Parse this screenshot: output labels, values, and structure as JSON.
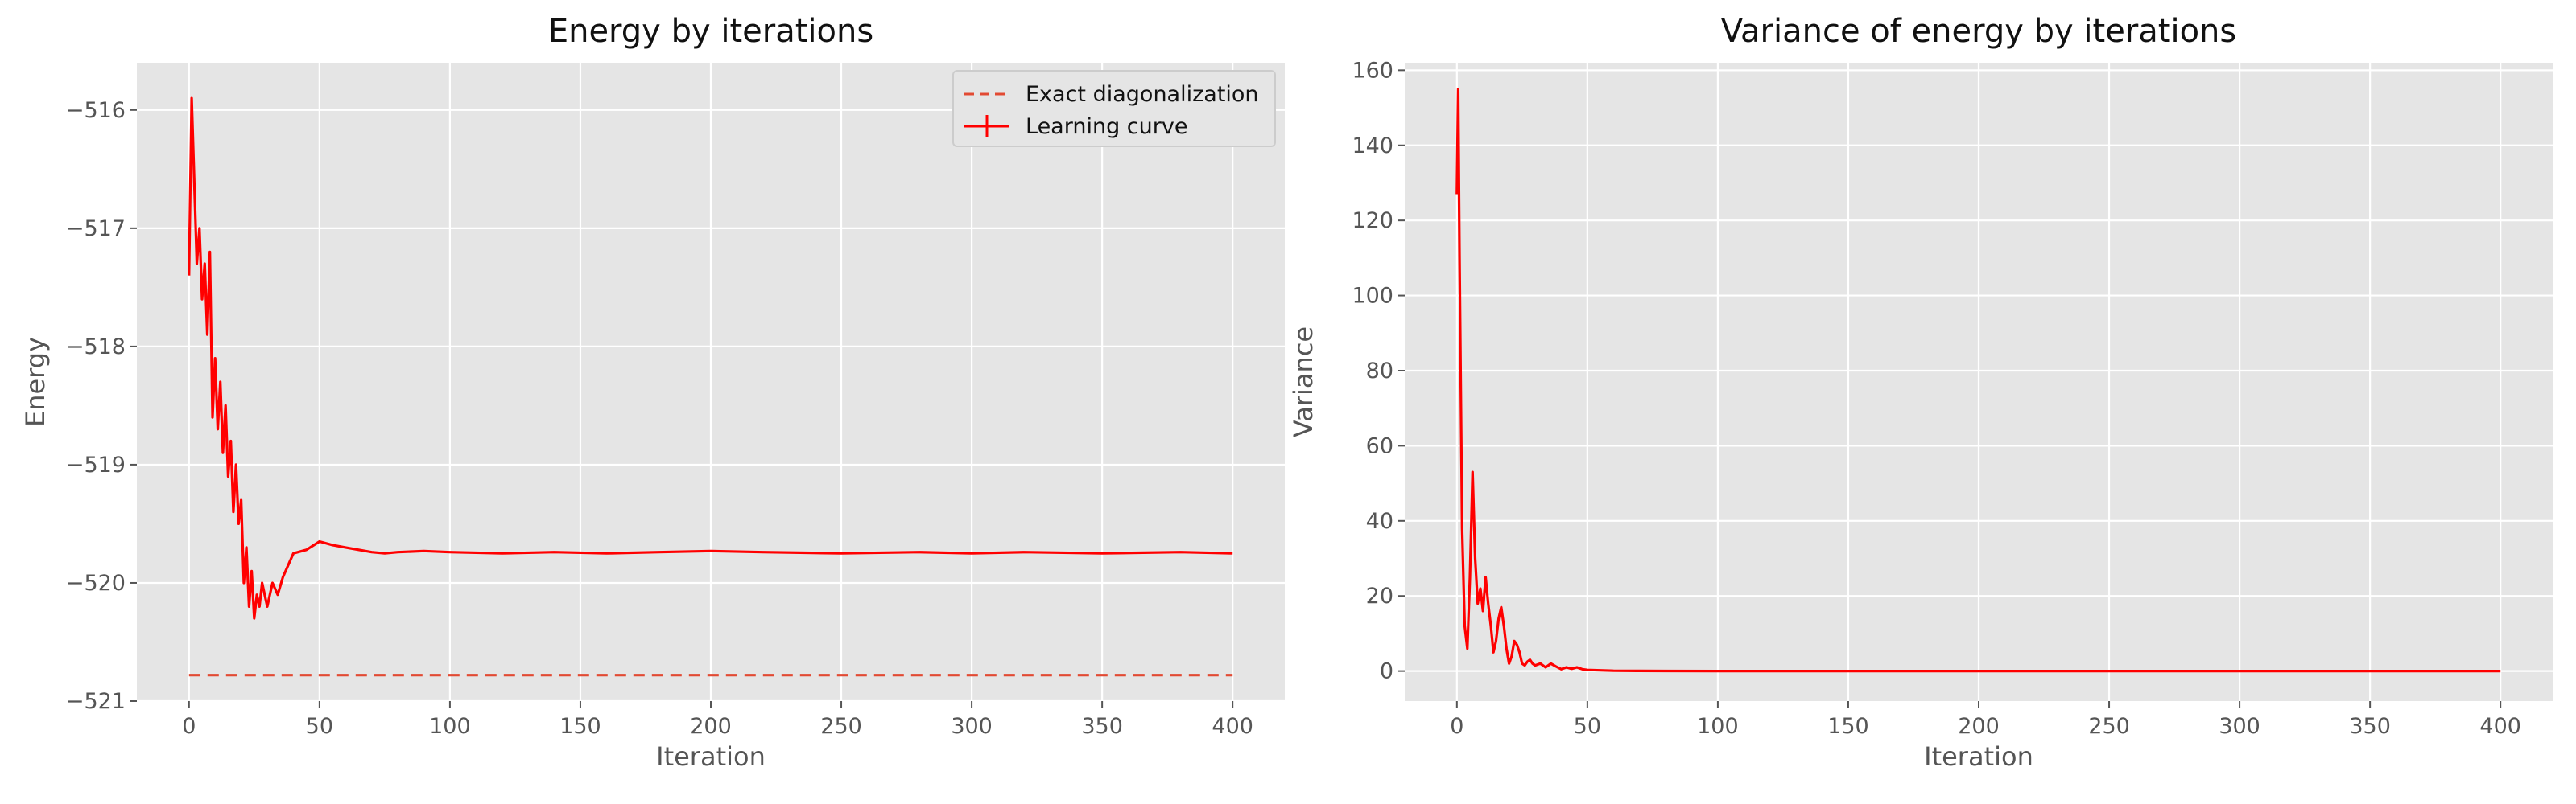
{
  "chart_data": [
    {
      "type": "line",
      "title": "Energy by iterations",
      "xlabel": "Iteration",
      "ylabel": "Energy",
      "xlim": [
        -20,
        420
      ],
      "ylim": [
        -521,
        -515.6
      ],
      "xticks": [
        0,
        50,
        100,
        150,
        200,
        250,
        300,
        350,
        400
      ],
      "xtick_labels": [
        "0",
        "50",
        "100",
        "150",
        "200",
        "250",
        "300",
        "350",
        "400"
      ],
      "yticks": [
        -521,
        -520,
        -519,
        -518,
        -517,
        -516
      ],
      "ytick_labels": [
        "−521",
        "−520",
        "−519",
        "−518",
        "−517",
        "−516"
      ],
      "grid": true,
      "legend_position": "top-right",
      "series": [
        {
          "name": "Exact diagonalization",
          "style": "dashed",
          "color": "#e24a33",
          "x": [
            0,
            400
          ],
          "y": [
            -520.78,
            -520.78
          ]
        },
        {
          "name": "Learning curve",
          "style": "solid",
          "color": "#ff0000",
          "x": [
            0,
            1,
            2,
            3,
            4,
            5,
            6,
            7,
            8,
            9,
            10,
            11,
            12,
            13,
            14,
            15,
            16,
            17,
            18,
            19,
            20,
            21,
            22,
            23,
            24,
            25,
            26,
            27,
            28,
            30,
            32,
            34,
            36,
            38,
            40,
            45,
            50,
            55,
            60,
            65,
            70,
            75,
            80,
            90,
            100,
            120,
            140,
            160,
            180,
            200,
            220,
            250,
            280,
            300,
            320,
            350,
            380,
            400
          ],
          "y": [
            -517.4,
            -515.9,
            -516.6,
            -517.3,
            -517.0,
            -517.6,
            -517.3,
            -517.9,
            -517.2,
            -518.6,
            -518.1,
            -518.7,
            -518.3,
            -518.9,
            -518.5,
            -519.1,
            -518.8,
            -519.4,
            -519.0,
            -519.5,
            -519.3,
            -520.0,
            -519.7,
            -520.2,
            -519.9,
            -520.3,
            -520.1,
            -520.2,
            -520.0,
            -520.2,
            -520.0,
            -520.1,
            -519.95,
            -519.85,
            -519.75,
            -519.72,
            -519.65,
            -519.68,
            -519.7,
            -519.72,
            -519.74,
            -519.75,
            -519.74,
            -519.73,
            -519.74,
            -519.75,
            -519.74,
            -519.75,
            -519.74,
            -519.73,
            -519.74,
            -519.75,
            -519.74,
            -519.75,
            -519.74,
            -519.75,
            -519.74,
            -519.75
          ]
        }
      ]
    },
    {
      "type": "line",
      "title": "Variance of energy by iterations",
      "xlabel": "Iteration",
      "ylabel": "Variance",
      "xlim": [
        -20,
        420
      ],
      "ylim": [
        -8,
        162
      ],
      "xticks": [
        0,
        50,
        100,
        150,
        200,
        250,
        300,
        350,
        400
      ],
      "xtick_labels": [
        "0",
        "50",
        "100",
        "150",
        "200",
        "250",
        "300",
        "350",
        "400"
      ],
      "yticks": [
        0,
        20,
        40,
        60,
        80,
        100,
        120,
        140,
        160
      ],
      "ytick_labels": [
        "0",
        "20",
        "40",
        "60",
        "80",
        "100",
        "120",
        "140",
        "160"
      ],
      "grid": true,
      "series": [
        {
          "style": "solid",
          "color": "#ff0000",
          "x": [
            0,
            0.5,
            1,
            2,
            3,
            4,
            5,
            6,
            7,
            8,
            9,
            10,
            11,
            12,
            13,
            14,
            15,
            16,
            17,
            18,
            19,
            20,
            21,
            22,
            23,
            24,
            25,
            26,
            27,
            28,
            29,
            30,
            32,
            34,
            36,
            38,
            40,
            42,
            44,
            46,
            48,
            50,
            55,
            60,
            70,
            80,
            100,
            150,
            200,
            300,
            400
          ],
          "y": [
            127,
            155,
            110,
            38,
            12,
            6,
            25,
            53,
            30,
            18,
            22,
            16,
            25,
            18,
            12,
            5,
            8,
            14,
            17,
            12,
            6,
            2,
            4,
            8,
            7,
            5,
            2,
            1.5,
            2.5,
            3,
            2,
            1.5,
            2,
            1,
            2,
            1.2,
            0.5,
            1,
            0.6,
            1,
            0.5,
            0.3,
            0.2,
            0.1,
            0.05,
            0.02,
            0,
            0,
            0,
            0,
            0
          ]
        }
      ]
    }
  ]
}
